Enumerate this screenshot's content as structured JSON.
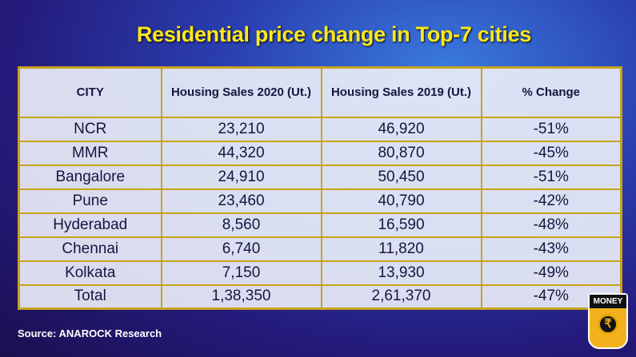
{
  "title": "Residential price change in Top-7 cities",
  "source": "Source: ANAROCK Research",
  "logo": {
    "text": "MONEY",
    "symbol": "₹"
  },
  "colors": {
    "title": "#ffe81a",
    "border": "#c9a317",
    "text": "#14163f"
  },
  "chart_data": {
    "type": "table",
    "title": "Residential price change in Top-7 cities",
    "columns": [
      "CITY",
      "Housing Sales 2020 (Ut.)",
      "Housing Sales  2019 (Ut.)",
      "% Change"
    ],
    "rows": [
      [
        "NCR",
        "23,210",
        "46,920",
        "-51%"
      ],
      [
        "MMR",
        "44,320",
        "80,870",
        "-45%"
      ],
      [
        "Bangalore",
        "24,910",
        "50,450",
        "-51%"
      ],
      [
        "Pune",
        "23,460",
        "40,790",
        "-42%"
      ],
      [
        "Hyderabad",
        "8,560",
        "16,590",
        "-48%"
      ],
      [
        "Chennai",
        "6,740",
        "11,820",
        "-43%"
      ],
      [
        "Kolkata",
        "7,150",
        "13,930",
        "-49%"
      ],
      [
        "Total",
        "1,38,350",
        "2,61,370",
        "-47%"
      ]
    ]
  }
}
